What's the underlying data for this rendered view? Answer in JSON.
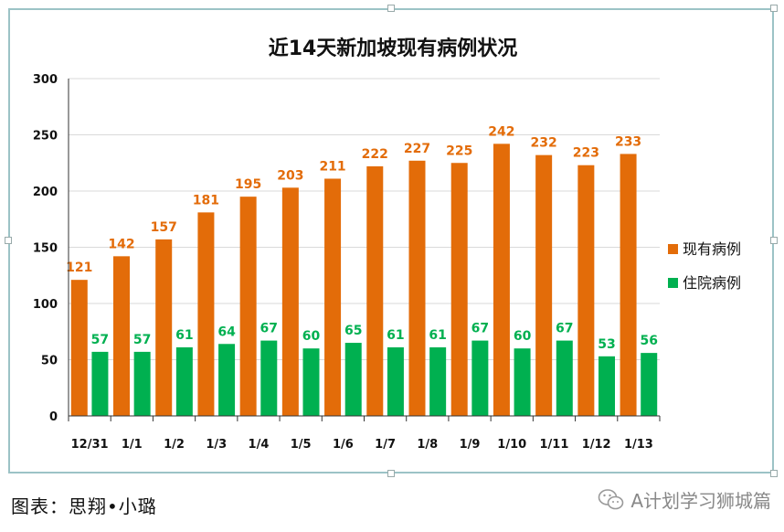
{
  "chart_data": {
    "type": "bar",
    "title": "近14天新加坡现有病例状况",
    "categories": [
      "12/31",
      "1/1",
      "1/2",
      "1/3",
      "1/4",
      "1/5",
      "1/6",
      "1/7",
      "1/8",
      "1/9",
      "1/10",
      "1/11",
      "1/12",
      "1/13"
    ],
    "series": [
      {
        "name": "现有病例",
        "color": "#e36c09",
        "label_color": "#e36c09",
        "values": [
          121,
          142,
          157,
          181,
          195,
          203,
          211,
          222,
          227,
          225,
          242,
          232,
          223,
          233
        ]
      },
      {
        "name": "住院病例",
        "color": "#00b050",
        "label_color": "#00b050",
        "values": [
          57,
          57,
          61,
          64,
          67,
          60,
          65,
          61,
          61,
          67,
          60,
          67,
          53,
          56
        ]
      }
    ],
    "ylim": [
      0,
      300
    ],
    "yticks": [
      "0",
      "50",
      "100",
      "150",
      "200",
      "250",
      "300"
    ],
    "grid": true,
    "legend": "right",
    "data_labels": true
  },
  "credit": "图表：思翔•小璐",
  "watermark": {
    "icon": "wechat-icon",
    "text": "A计划学习狮城篇"
  }
}
